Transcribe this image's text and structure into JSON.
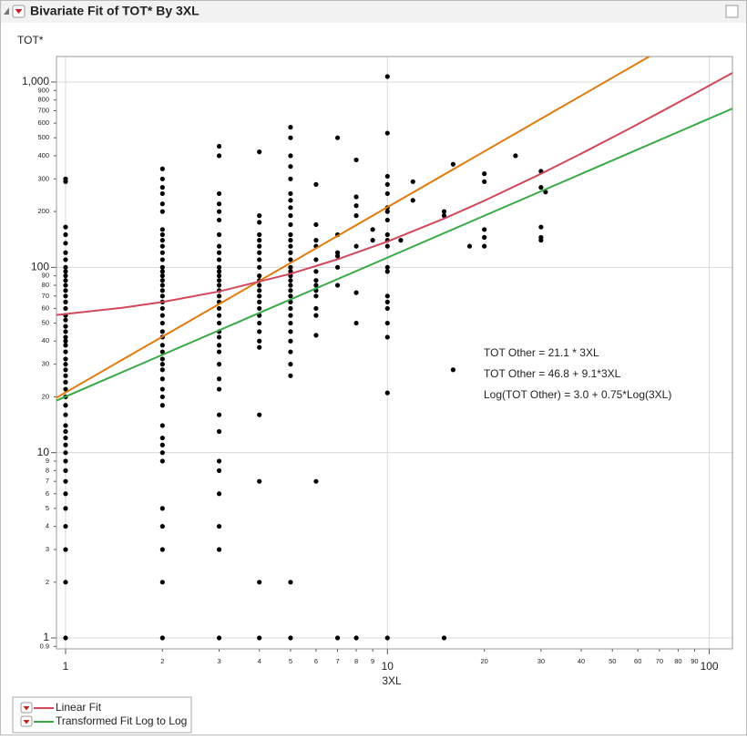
{
  "chart_data": {
    "type": "scatter",
    "title": "Bivariate Fit of TOT* By 3XL",
    "y_label": "TOT*",
    "x_label": "3XL",
    "log_x": true,
    "log_y": true,
    "grid": true,
    "xlim": [
      0.937,
      118
    ],
    "ylim": [
      0.873,
      1373
    ],
    "xticks": [
      1,
      2,
      3,
      4,
      5,
      6,
      7,
      8,
      9,
      10,
      20,
      30,
      40,
      50,
      60,
      70,
      80,
      90,
      100
    ],
    "yticks": [
      0.9,
      1,
      2,
      3,
      4,
      5,
      6,
      7,
      8,
      9,
      10,
      20,
      30,
      40,
      50,
      60,
      70,
      80,
      90,
      100,
      200,
      300,
      400,
      500,
      600,
      700,
      800,
      900,
      {
        "value": 1000,
        "label": "1,000"
      }
    ],
    "annotations": [
      "TOT Other = 21.1 * 3XL",
      "TOT Other = 46.8 + 9.1*3XL",
      "Log(TOT Other) = 3.0 + 0.75*Log(3XL)"
    ],
    "series": [
      {
        "type": "scatter",
        "color": "#000000",
        "x": [
          1,
          1,
          1,
          1,
          1,
          1,
          1,
          1,
          1,
          1,
          1,
          1,
          1,
          1,
          1,
          1,
          1,
          1,
          1,
          1,
          1,
          1,
          1,
          1,
          1,
          1,
          1,
          1,
          1,
          1,
          1,
          1,
          1,
          1,
          1,
          1,
          1,
          1,
          1,
          1,
          1,
          1,
          1,
          1,
          1,
          1,
          1,
          2,
          2,
          2,
          2,
          2,
          2,
          2,
          2,
          2,
          2,
          2,
          2,
          2,
          2,
          2,
          2,
          2,
          2,
          2,
          2,
          2,
          2,
          2,
          2,
          2,
          2,
          2,
          2,
          2,
          2,
          2,
          2,
          2,
          2,
          2,
          2,
          2,
          2,
          2,
          2,
          2,
          2,
          2,
          2,
          3,
          3,
          3,
          3,
          3,
          3,
          3,
          3,
          3,
          3,
          3,
          3,
          3,
          3,
          3,
          3,
          3,
          3,
          3,
          3,
          3,
          3,
          3,
          3,
          3,
          3,
          3,
          3,
          3,
          3,
          3,
          3,
          3,
          3,
          3,
          3,
          4,
          4,
          4,
          4,
          4,
          4,
          4,
          4,
          4,
          4,
          4,
          4,
          4,
          4,
          4,
          4,
          4,
          4,
          4,
          4,
          4,
          4,
          4,
          4,
          4,
          5,
          5,
          5,
          5,
          5,
          5,
          5,
          5,
          5,
          5,
          5,
          5,
          5,
          5,
          5,
          5,
          5,
          5,
          5,
          5,
          5,
          5,
          5,
          5,
          5,
          5,
          5,
          5,
          5,
          5,
          5,
          5,
          5,
          6,
          6,
          6,
          6,
          6,
          6,
          6,
          6,
          6,
          6,
          6,
          6,
          6,
          6,
          7,
          7,
          7,
          7,
          7,
          7,
          7,
          8,
          8,
          8,
          8,
          8,
          8,
          8,
          8,
          9,
          9,
          10,
          10,
          10,
          10,
          10,
          10,
          10,
          10,
          10,
          10,
          10,
          10,
          10,
          10,
          10,
          10,
          10,
          10,
          10,
          10,
          11,
          12,
          12,
          15,
          15,
          15,
          16,
          16,
          18,
          20,
          20,
          20,
          20,
          20,
          25,
          30,
          30,
          30,
          30,
          30,
          31
        ],
        "values": [
          300,
          290,
          165,
          150,
          135,
          120,
          110,
          100,
          95,
          90,
          85,
          80,
          75,
          70,
          65,
          60,
          55,
          52,
          48,
          45,
          42,
          40,
          38,
          35,
          32,
          30,
          28,
          26,
          24,
          22,
          20,
          18,
          16,
          14,
          13,
          12,
          11,
          10,
          9,
          8,
          7,
          6,
          5,
          4,
          3,
          2,
          1,
          340,
          300,
          270,
          250,
          220,
          200,
          160,
          150,
          140,
          130,
          120,
          110,
          100,
          95,
          90,
          85,
          80,
          75,
          70,
          65,
          60,
          55,
          50,
          45,
          42,
          38,
          35,
          32,
          30,
          28,
          25,
          22,
          20,
          18,
          14,
          12,
          11,
          10,
          9,
          5,
          4,
          3,
          2,
          1,
          450,
          400,
          250,
          220,
          200,
          180,
          150,
          130,
          120,
          110,
          100,
          95,
          90,
          85,
          80,
          75,
          70,
          65,
          60,
          55,
          50,
          45,
          42,
          38,
          35,
          30,
          25,
          22,
          16,
          13,
          9,
          8,
          6,
          4,
          3,
          1,
          420,
          190,
          175,
          150,
          140,
          130,
          120,
          110,
          100,
          90,
          85,
          80,
          75,
          70,
          65,
          60,
          55,
          50,
          45,
          40,
          37,
          16,
          7,
          2,
          1,
          570,
          500,
          400,
          350,
          300,
          250,
          230,
          210,
          190,
          170,
          150,
          140,
          130,
          120,
          110,
          100,
          95,
          90,
          85,
          80,
          75,
          70,
          65,
          60,
          55,
          50,
          45,
          40,
          35,
          30,
          26,
          2,
          1,
          280,
          170,
          140,
          130,
          110,
          95,
          85,
          80,
          75,
          70,
          60,
          55,
          43,
          7,
          500,
          150,
          120,
          115,
          100,
          80,
          1,
          380,
          240,
          215,
          190,
          130,
          73,
          50,
          1,
          160,
          140,
          1070,
          530,
          310,
          280,
          250,
          210,
          200,
          180,
          150,
          140,
          130,
          100,
          95,
          70,
          65,
          60,
          50,
          42,
          21,
          1,
          140,
          290,
          230,
          200,
          190,
          1,
          360,
          28,
          130,
          320,
          290,
          160,
          145,
          130,
          400,
          330,
          270,
          165,
          145,
          140,
          255
        ]
      },
      {
        "type": "line",
        "color": "#e07b10",
        "x": [
          0.937,
          65.1
        ],
        "values": [
          19.8,
          1373
        ]
      },
      {
        "type": "line",
        "name": "Linear Fit",
        "color": "#d0485a",
        "x": [
          0.937,
          1.5,
          2,
          3,
          5,
          7,
          10,
          15,
          20,
          30,
          40,
          55,
          70,
          90,
          118
        ],
        "values": [
          55.3,
          60.5,
          65.0,
          74.1,
          92.3,
          110.5,
          137.8,
          183.3,
          228.8,
          319.8,
          410.8,
          547.3,
          683.8,
          865.8,
          1120.6
        ]
      },
      {
        "type": "line",
        "name": "Transformed Fit Log to Log",
        "color": "#3aaa48",
        "x": [
          0.937,
          118
        ],
        "values": [
          19.1,
          719
        ]
      }
    ]
  }
}
